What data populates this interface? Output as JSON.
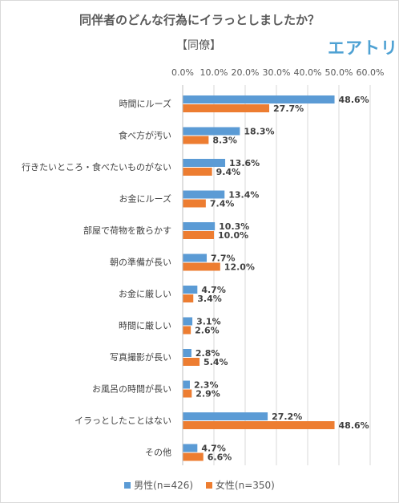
{
  "chart_data": {
    "type": "bar",
    "orientation": "horizontal",
    "title": "同伴者のどんな行為にイラっとしましたか？",
    "subtitle": "【同僚】",
    "brand": "エアトリ",
    "xlim": [
      0,
      60
    ],
    "x_ticks": [
      "0.0%",
      "10.0%",
      "20.0%",
      "30.0%",
      "40.0%",
      "50.0%",
      "60.0%"
    ],
    "grid": true,
    "legend_position": "bottom",
    "categories": [
      "時間にルーズ",
      "食べ方が汚い",
      "行きたいところ・食べたいものがない",
      "お金にルーズ",
      "部屋で荷物を散らかす",
      "朝の準備が長い",
      "お金に厳しい",
      "時間に厳しい",
      "写真撮影が長い",
      "お風呂の時間が長い",
      "イラっとしたことはない",
      "その他"
    ],
    "series": [
      {
        "name": "男性(n=426)",
        "color": "#5b9bd5",
        "values": [
          48.6,
          18.3,
          13.6,
          13.4,
          10.3,
          7.7,
          4.7,
          3.1,
          2.8,
          2.3,
          27.2,
          4.7
        ],
        "labels": [
          "48.6%",
          "18.3%",
          "13.6%",
          "13.4%",
          "10.3%",
          "7.7%",
          "4.7%",
          "3.1%",
          "2.8%",
          "2.3%",
          "27.2%",
          "4.7%"
        ]
      },
      {
        "name": "女性(n=350)",
        "color": "#ed7d31",
        "values": [
          27.7,
          8.3,
          9.4,
          7.4,
          10.0,
          12.0,
          3.4,
          2.6,
          5.4,
          2.9,
          48.6,
          6.6
        ],
        "labels": [
          "27.7%",
          "8.3%",
          "9.4%",
          "7.4%",
          "10.0%",
          "12.0%",
          "3.4%",
          "2.6%",
          "5.4%",
          "2.9%",
          "48.6%",
          "6.6%"
        ]
      }
    ]
  }
}
